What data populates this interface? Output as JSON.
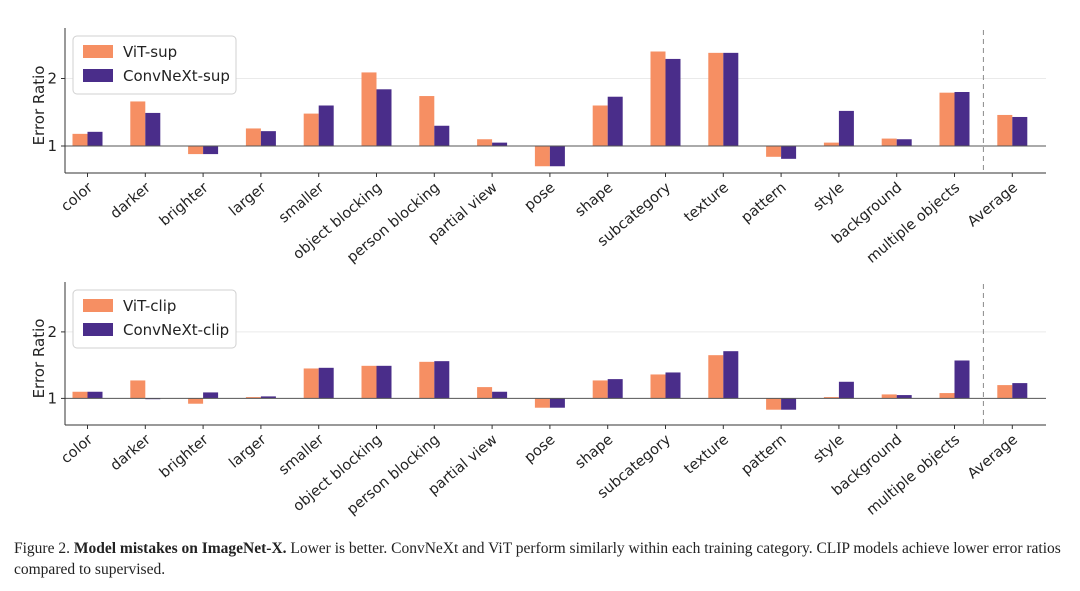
{
  "colors": {
    "vit": "#f68f63",
    "convnext": "#4a2d8a",
    "axis": "#333333",
    "grid": "#eaeaea",
    "divider": "#8a8a8a"
  },
  "chart_data": [
    {
      "type": "bar",
      "ylabel": "Error Ratio",
      "yticks": [
        1,
        2
      ],
      "ylim": [
        0.6,
        2.6
      ],
      "grid": true,
      "legend_position": "top-left",
      "categories": [
        "color",
        "darker",
        "brighter",
        "larger",
        "smaller",
        "object blocking",
        "person blocking",
        "partial view",
        "pose",
        "shape",
        "subcategory",
        "texture",
        "pattern",
        "style",
        "background",
        "multiple objects",
        "Average"
      ],
      "series": [
        {
          "name": "ViT-sup",
          "color_key": "vit",
          "values": [
            1.18,
            1.66,
            0.88,
            1.26,
            1.48,
            2.09,
            1.74,
            1.1,
            0.7,
            1.6,
            2.4,
            2.38,
            0.84,
            1.05,
            1.11,
            1.79,
            1.46
          ]
        },
        {
          "name": "ConvNeXt-sup",
          "color_key": "convnext",
          "values": [
            1.21,
            1.49,
            0.88,
            1.22,
            1.6,
            1.84,
            1.3,
            1.05,
            0.7,
            1.73,
            2.29,
            2.38,
            0.81,
            1.52,
            1.1,
            1.8,
            1.43
          ]
        }
      ]
    },
    {
      "type": "bar",
      "ylabel": "Error Ratio",
      "yticks": [
        1,
        2
      ],
      "ylim": [
        0.6,
        2.6
      ],
      "grid": true,
      "legend_position": "top-left",
      "categories": [
        "color",
        "darker",
        "brighter",
        "larger",
        "smaller",
        "object blocking",
        "person blocking",
        "partial view",
        "pose",
        "shape",
        "subcategory",
        "texture",
        "pattern",
        "style",
        "background",
        "multiple objects",
        "Average"
      ],
      "series": [
        {
          "name": "ViT-clip",
          "color_key": "vit",
          "values": [
            1.1,
            1.27,
            0.92,
            1.02,
            1.45,
            1.49,
            1.55,
            1.17,
            0.86,
            1.27,
            1.36,
            1.65,
            0.83,
            1.02,
            1.06,
            1.08,
            1.2
          ]
        },
        {
          "name": "ConvNeXt-clip",
          "color_key": "convnext",
          "values": [
            1.1,
            1.0,
            1.09,
            1.03,
            1.46,
            1.49,
            1.56,
            1.1,
            0.86,
            1.29,
            1.39,
            1.71,
            0.83,
            1.25,
            1.05,
            1.57,
            1.23
          ]
        }
      ]
    }
  ],
  "caption": {
    "prefix": "Figure 2. ",
    "bold": "Model mistakes on ImageNet-X.",
    "text": " Lower is better. ConvNeXt and ViT perform similarly within each training category. CLIP models achieve lower error ratios compared to supervised."
  }
}
